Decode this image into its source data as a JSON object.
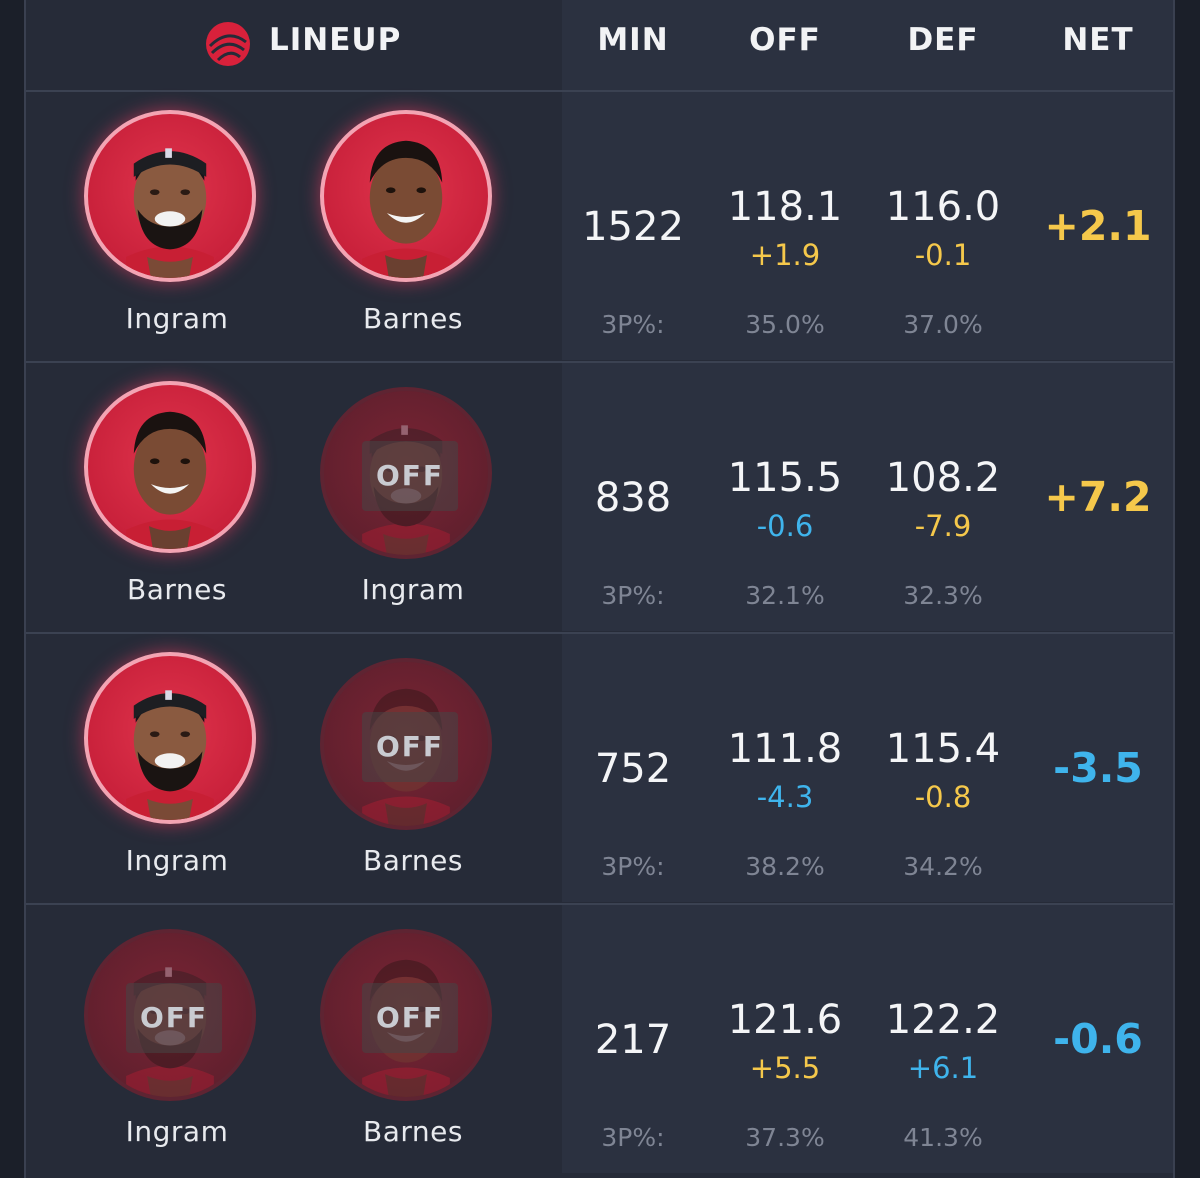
{
  "colors": {
    "positive": "#f5c84b",
    "negative": "#3fb4ec",
    "accent": "#e0314b"
  },
  "header": {
    "logo_icon": "raptors-logo-icon",
    "lineup_label": "LINEUP",
    "min_label": "MIN",
    "off_label": "OFF",
    "def_label": "DEF",
    "net_label": "NET"
  },
  "off_badge_label": "OFF",
  "three_pt_label": "3P%:",
  "rows": [
    {
      "players": [
        {
          "name": "Ingram",
          "status": "on",
          "avatar": "ingram"
        },
        {
          "name": "Barnes",
          "status": "on",
          "avatar": "barnes"
        }
      ],
      "min": "1522",
      "off": "118.1",
      "off_delta": "+1.9",
      "off_delta_tone": "positive",
      "off_3p": "35.0%",
      "def": "116.0",
      "def_delta": "-0.1",
      "def_delta_tone": "positive",
      "def_3p": "37.0%",
      "net": "+2.1",
      "net_tone": "positive"
    },
    {
      "players": [
        {
          "name": "Barnes",
          "status": "on",
          "avatar": "barnes"
        },
        {
          "name": "Ingram",
          "status": "off",
          "avatar": "ingram"
        }
      ],
      "min": "838",
      "off": "115.5",
      "off_delta": "-0.6",
      "off_delta_tone": "negative",
      "off_3p": "32.1%",
      "def": "108.2",
      "def_delta": "-7.9",
      "def_delta_tone": "positive",
      "def_3p": "32.3%",
      "net": "+7.2",
      "net_tone": "positive"
    },
    {
      "players": [
        {
          "name": "Ingram",
          "status": "on",
          "avatar": "ingram"
        },
        {
          "name": "Barnes",
          "status": "off",
          "avatar": "barnes"
        }
      ],
      "min": "752",
      "off": "111.8",
      "off_delta": "-4.3",
      "off_delta_tone": "negative",
      "off_3p": "38.2%",
      "def": "115.4",
      "def_delta": "-0.8",
      "def_delta_tone": "positive",
      "def_3p": "34.2%",
      "net": "-3.5",
      "net_tone": "negative"
    },
    {
      "players": [
        {
          "name": "Ingram",
          "status": "off",
          "avatar": "ingram"
        },
        {
          "name": "Barnes",
          "status": "off",
          "avatar": "barnes"
        }
      ],
      "min": "217",
      "off": "121.6",
      "off_delta": "+5.5",
      "off_delta_tone": "positive",
      "off_3p": "37.3%",
      "def": "122.2",
      "def_delta": "+6.1",
      "def_delta_tone": "negative",
      "def_3p": "41.3%",
      "net": "-0.6",
      "net_tone": "negative"
    }
  ]
}
